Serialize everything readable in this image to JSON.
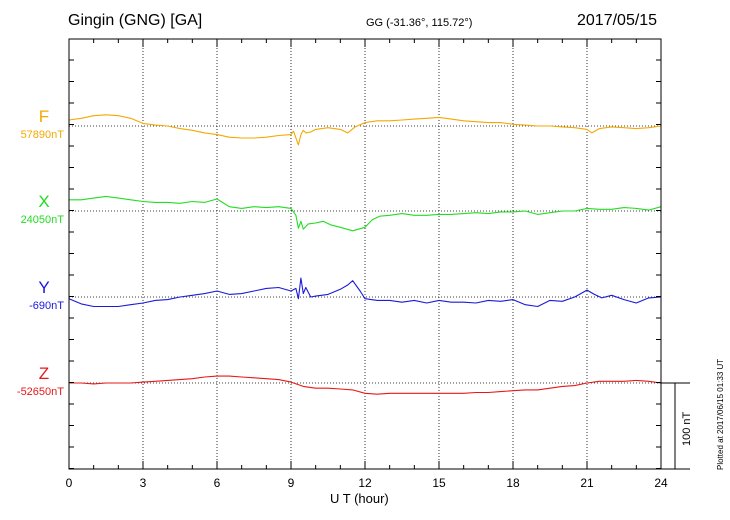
{
  "header": {
    "station": "Gingin (GNG)  [GA]",
    "coords": "GG (-31.36°, 115.72°)",
    "date": "2017/05/15"
  },
  "footer": {
    "plotted": "Plotted at 2017/06/15 01:33 UT"
  },
  "chart_data": {
    "type": "line",
    "xlabel": "U T (hour)",
    "xlim": [
      0,
      24
    ],
    "xticks": [
      0,
      3,
      6,
      9,
      12,
      15,
      18,
      21,
      24
    ],
    "scale_bar_label": "100 nT",
    "scale_bar_nT": 100,
    "series": [
      {
        "name": "F",
        "baseline_label": "57890nT",
        "baseline_nT": 57890,
        "color": "#f5a800",
        "x": [
          0,
          0.5,
          1,
          1.5,
          2,
          2.5,
          3,
          3.5,
          4,
          4.5,
          5,
          5.5,
          6,
          6.5,
          7,
          7.5,
          8,
          8.5,
          9,
          9.1,
          9.2,
          9.3,
          9.4,
          9.5,
          9.6,
          9.8,
          10,
          10.5,
          11,
          11.3,
          11.6,
          12,
          12.5,
          13,
          13.5,
          14,
          14.5,
          15,
          15.5,
          16,
          16.5,
          17,
          17.5,
          18,
          18.5,
          19,
          19.5,
          20,
          20.5,
          21,
          21.2,
          21.5,
          22,
          22.5,
          23,
          23.5,
          24
        ],
        "values": [
          57897,
          57899,
          57902,
          57903,
          57902,
          57899,
          57893,
          57891,
          57890,
          57887,
          57885,
          57882,
          57880,
          57877,
          57876,
          57876,
          57877,
          57879,
          57880,
          57884,
          57876,
          57868,
          57880,
          57885,
          57882,
          57883,
          57886,
          57888,
          57886,
          57882,
          57889,
          57894,
          57896,
          57896,
          57897,
          57898,
          57899,
          57900,
          57898,
          57896,
          57895,
          57894,
          57894,
          57892,
          57891,
          57890,
          57890,
          57889,
          57888,
          57886,
          57882,
          57887,
          57889,
          57888,
          57887,
          57888,
          57890
        ]
      },
      {
        "name": "X",
        "baseline_label": "24050nT",
        "baseline_nT": 24050,
        "color": "#22dd22",
        "x": [
          0,
          0.5,
          1,
          1.5,
          2,
          2.5,
          3,
          3.5,
          4,
          4.5,
          5,
          5.5,
          6,
          6.5,
          7,
          7.5,
          8,
          8.5,
          9,
          9.2,
          9.3,
          9.4,
          9.5,
          9.7,
          10,
          10.3,
          10.6,
          11,
          11.5,
          12,
          12.3,
          12.6,
          13,
          13.5,
          14,
          14.5,
          15,
          15.5,
          16,
          16.5,
          17,
          17.5,
          18,
          18.5,
          19,
          19.5,
          20,
          20.5,
          21,
          21.5,
          22,
          22.5,
          23,
          23.5,
          24
        ],
        "values": [
          24063,
          24063,
          24065,
          24067,
          24065,
          24063,
          24061,
          24060,
          24060,
          24059,
          24061,
          24060,
          24064,
          24055,
          24053,
          24055,
          24054,
          24055,
          24053,
          24045,
          24030,
          24038,
          24029,
          24035,
          24036,
          24038,
          24034,
          24031,
          24027,
          24031,
          24040,
          24044,
          24045,
          24047,
          24045,
          24045,
          24046,
          24046,
          24047,
          24048,
          24047,
          24049,
          24049,
          24050,
          24046,
          24048,
          24050,
          24050,
          24053,
          24052,
          24052,
          24054,
          24053,
          24051,
          24055
        ]
      },
      {
        "name": "Y",
        "baseline_label": "-690nT",
        "baseline_nT": -690,
        "color": "#1a1adc",
        "x": [
          0,
          0.5,
          1,
          1.5,
          2,
          2.5,
          3,
          3.5,
          4,
          4.5,
          5,
          5.5,
          6,
          6.5,
          7,
          7.5,
          8,
          8.5,
          9,
          9.2,
          9.3,
          9.4,
          9.5,
          9.6,
          9.8,
          10,
          10.5,
          11,
          11.3,
          11.5,
          11.8,
          12,
          12.5,
          13,
          13.5,
          14,
          14.5,
          15,
          15.5,
          16,
          16.5,
          17,
          17.5,
          18,
          18.5,
          19,
          19.5,
          20,
          20.5,
          21,
          21.3,
          21.6,
          22,
          22.5,
          23,
          23.5,
          24
        ],
        "values": [
          -692,
          -698,
          -701,
          -701,
          -701,
          -699,
          -697,
          -694,
          -693,
          -690,
          -688,
          -686,
          -683,
          -687,
          -686,
          -683,
          -680,
          -679,
          -683,
          -680,
          -692,
          -668,
          -686,
          -679,
          -690,
          -689,
          -687,
          -681,
          -676,
          -671,
          -683,
          -692,
          -694,
          -694,
          -696,
          -694,
          -697,
          -694,
          -696,
          -696,
          -697,
          -694,
          -695,
          -693,
          -699,
          -701,
          -694,
          -695,
          -690,
          -682,
          -687,
          -691,
          -688,
          -693,
          -697,
          -691,
          -690
        ]
      },
      {
        "name": "Z",
        "baseline_label": "-52650nT",
        "baseline_nT": -52650,
        "color": "#e81818",
        "x": [
          0,
          0.5,
          1,
          1.5,
          2,
          2.5,
          3,
          3.5,
          4,
          4.5,
          5,
          5.5,
          6,
          6.5,
          7,
          7.5,
          8,
          8.5,
          9,
          9.5,
          10,
          10.5,
          11,
          11.5,
          12,
          12.5,
          13,
          13.5,
          14,
          14.5,
          15,
          15.5,
          16,
          16.5,
          17,
          17.5,
          18,
          18.5,
          19,
          19.5,
          20,
          20.5,
          21,
          21.5,
          22,
          22.5,
          23,
          23.5,
          24
        ],
        "values": [
          -52650,
          -52650,
          -52651,
          -52650,
          -52650,
          -52650,
          -52649,
          -52648,
          -52647,
          -52646,
          -52645,
          -52643,
          -52642,
          -52642,
          -52643,
          -52644,
          -52645,
          -52646,
          -52649,
          -52654,
          -52656,
          -52656,
          -52657,
          -52658,
          -52662,
          -52663,
          -52662,
          -52662,
          -52662,
          -52662,
          -52662,
          -52662,
          -52662,
          -52661,
          -52661,
          -52660,
          -52659,
          -52658,
          -52658,
          -52656,
          -52654,
          -52653,
          -52650,
          -52648,
          -52648,
          -52648,
          -52647,
          -52648,
          -52650
        ]
      }
    ]
  }
}
